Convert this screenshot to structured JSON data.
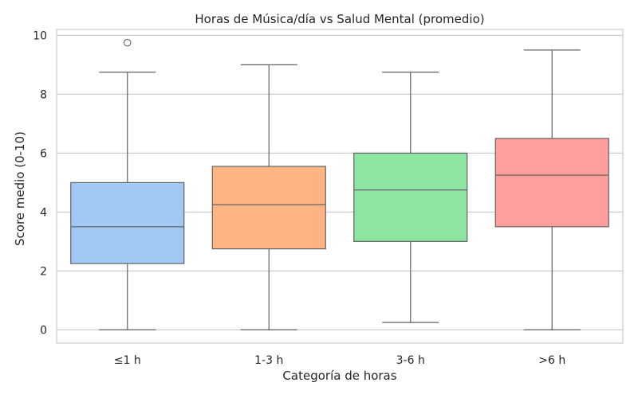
{
  "chart_data": {
    "type": "box",
    "title": "Horas de Música/día vs Salud Mental (promedio)",
    "xlabel": "Categoría de horas",
    "ylabel": "Score medio (0-10)",
    "ylim": [
      -0.45,
      10.2
    ],
    "yticks": [
      0,
      2,
      4,
      6,
      8,
      10
    ],
    "grid": true,
    "categories": [
      "≤1 h",
      "1-3 h",
      "3-6 h",
      ">6 h"
    ],
    "boxes": [
      {
        "category": "≤1 h",
        "whisker_low": 0,
        "q1": 2.25,
        "median": 3.5,
        "q3": 5.0,
        "whisker_high": 8.75,
        "outliers": [
          9.75
        ],
        "color": "#a1c9f4"
      },
      {
        "category": "1-3 h",
        "whisker_low": 0,
        "q1": 2.75,
        "median": 4.25,
        "q3": 5.55,
        "whisker_high": 9.0,
        "outliers": [],
        "color": "#ffb482"
      },
      {
        "category": "3-6 h",
        "whisker_low": 0.25,
        "q1": 3.0,
        "median": 4.75,
        "q3": 6.0,
        "whisker_high": 8.75,
        "outliers": [],
        "color": "#8de5a1"
      },
      {
        "category": ">6 h",
        "whisker_low": 0,
        "q1": 3.5,
        "median": 5.25,
        "q3": 6.5,
        "whisker_high": 9.5,
        "outliers": [],
        "color": "#ff9f9b"
      }
    ]
  }
}
